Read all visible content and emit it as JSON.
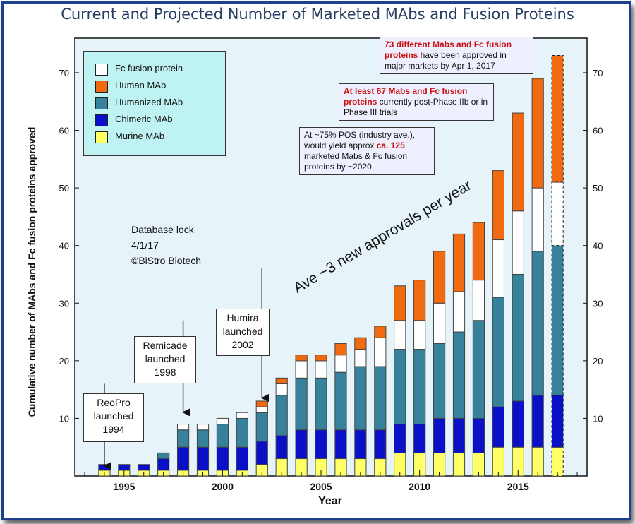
{
  "title": "Current and Projected Number of Marketed MAbs and Fusion Proteins",
  "colors": {
    "fc_fusion": "#ffffff",
    "human": "#f26a0f",
    "humanized": "#35829a",
    "chimeric": "#0a10c8",
    "murine": "#ffff66",
    "plot_bg": "#e6f4fa",
    "legend_bg": "#bff2f2"
  },
  "legend": [
    {
      "label": "Fc fusion protein",
      "color": "#ffffff"
    },
    {
      "label": "Human MAb",
      "color": "#f26a0f"
    },
    {
      "label": "Humanized MAb",
      "color": "#35829a"
    },
    {
      "label": "Chimeric MAb",
      "color": "#0a10c8"
    },
    {
      "label": "Murine MAb",
      "color": "#ffff66"
    }
  ],
  "database_note": {
    "line1": "Database lock",
    "line2": "4/1/17 –",
    "line3": "©BiStro Biotech"
  },
  "callouts": {
    "approved_red": "73 different Mabs and Fc fusion proteins",
    "approved_rest": " have been approved in major markets by Apr 1, 2017",
    "trials_red": "At least 67 Mabs and Fc fusion proteins",
    "trials_rest": " currently post-Phase IIb or in Phase III trials",
    "pos_pre": "At ~75% POS (industry ave.), would yield approx ",
    "pos_red": "ca. 125",
    "pos_post": " marketed Mabs & Fc fusion proteins by ~2020"
  },
  "launches": {
    "reopro": {
      "line1": "ReoPro",
      "line2": "launched",
      "line3": "1994"
    },
    "remicade": {
      "line1": "Remicade",
      "line2": "launched",
      "line3": "1998"
    },
    "humira": {
      "line1": "Humira",
      "line2": "launched",
      "line3": "2002"
    }
  },
  "trend_label": "Ave ~3 new approvals per year",
  "chart_data": {
    "type": "bar",
    "stacked": true,
    "title": "Current and Projected Number of Marketed MAbs and Fusion Proteins",
    "xlabel": "Year",
    "ylabel": "Cumulative number of MAbs and Fc fusion proteins approved",
    "x": [
      1994,
      1995,
      1996,
      1997,
      1998,
      1999,
      2000,
      2001,
      2002,
      2003,
      2004,
      2005,
      2006,
      2007,
      2008,
      2009,
      2010,
      2011,
      2012,
      2013,
      2014,
      2015,
      2016,
      2017
    ],
    "xticks": [
      1995,
      2000,
      2005,
      2010,
      2015
    ],
    "yticks": [
      10,
      20,
      30,
      40,
      50,
      60,
      70
    ],
    "ylim": [
      0,
      76
    ],
    "xlim": [
      1992.5,
      2018.5
    ],
    "series": [
      {
        "name": "Murine MAb",
        "color": "#ffff66",
        "values": [
          1,
          1,
          1,
          1,
          1,
          1,
          1,
          1,
          2,
          3,
          3,
          3,
          3,
          3,
          3,
          4,
          4,
          4,
          4,
          4,
          5,
          5,
          5,
          5
        ]
      },
      {
        "name": "Chimeric MAb",
        "color": "#0a10c8",
        "values": [
          1,
          1,
          1,
          2,
          4,
          4,
          4,
          4,
          4,
          4,
          5,
          5,
          5,
          5,
          5,
          5,
          5,
          6,
          6,
          6,
          7,
          8,
          9,
          9
        ]
      },
      {
        "name": "Humanized MAb",
        "color": "#35829a",
        "values": [
          0,
          0,
          0,
          1,
          3,
          3,
          4,
          5,
          5,
          7,
          9,
          9,
          10,
          11,
          11,
          13,
          13,
          13,
          15,
          17,
          19,
          22,
          25,
          26
        ]
      },
      {
        "name": "Fc fusion protein",
        "color": "#ffffff",
        "values": [
          0,
          0,
          0,
          0,
          1,
          1,
          1,
          1,
          1,
          2,
          3,
          3,
          3,
          3,
          5,
          5,
          5,
          7,
          7,
          7,
          10,
          11,
          11,
          11
        ]
      },
      {
        "name": "Human MAb",
        "color": "#f26a0f",
        "values": [
          0,
          0,
          0,
          0,
          0,
          0,
          0,
          0,
          1,
          1,
          1,
          1,
          2,
          2,
          2,
          6,
          7,
          9,
          10,
          10,
          12,
          17,
          19,
          22
        ]
      }
    ],
    "totals": [
      2,
      2,
      2,
      4,
      9,
      9,
      10,
      11,
      13,
      17,
      21,
      21,
      23,
      24,
      26,
      33,
      34,
      39,
      42,
      44,
      53,
      63,
      69,
      73
    ],
    "projected_year": 2017,
    "grid": false,
    "legend_position": "top-left"
  }
}
